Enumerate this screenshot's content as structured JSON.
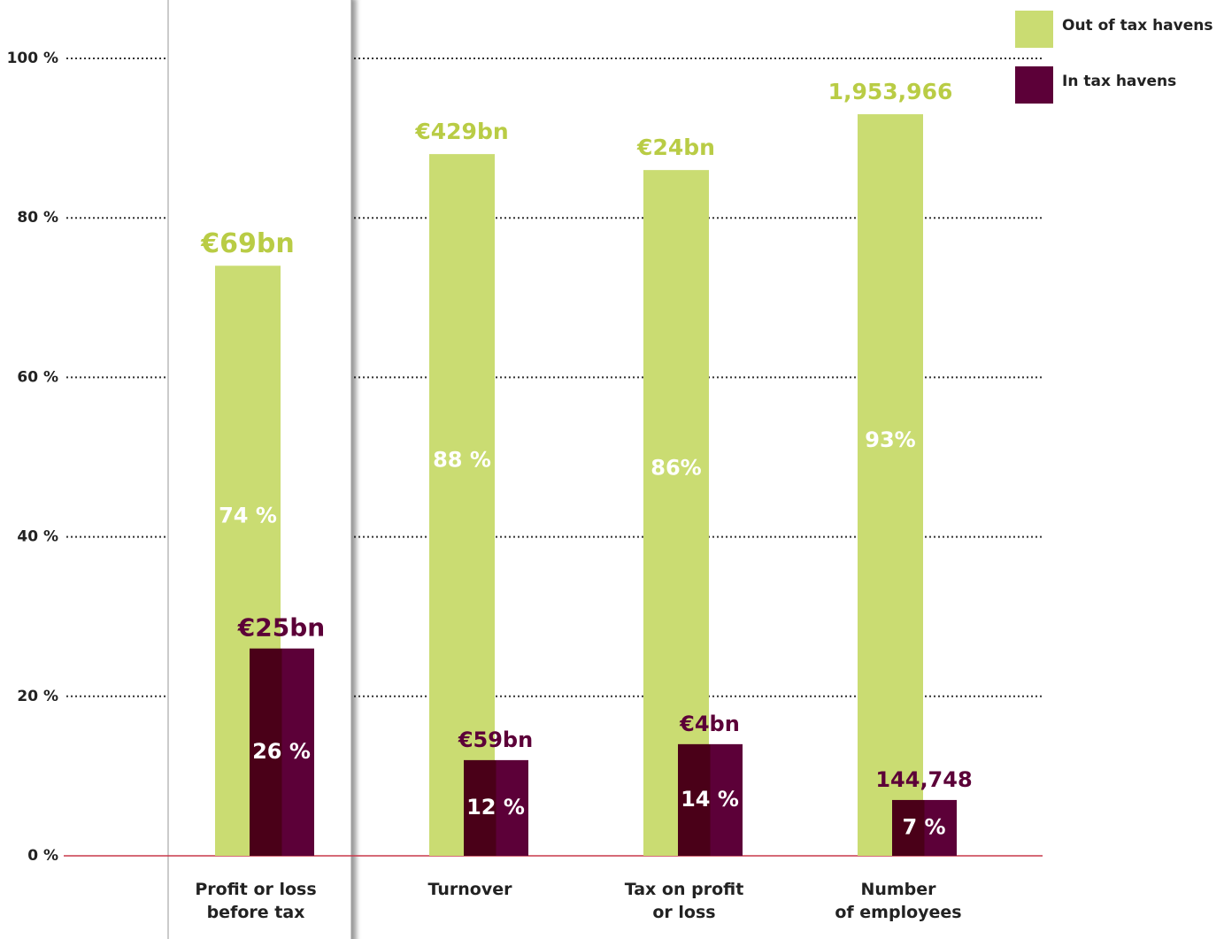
{
  "chart_data": {
    "type": "bar",
    "categories": [
      "Profit or loss\nbefore tax",
      "Turnover",
      "Tax on profit\nor loss",
      "Number\nof employees"
    ],
    "series": [
      {
        "name": "Out of tax havens",
        "color": "#cadc72",
        "values": [
          74,
          88,
          86,
          93
        ],
        "value_labels": [
          "74 %",
          "88 %",
          "86%",
          "93%"
        ],
        "amount_labels": [
          "€69bn",
          "€429bn",
          "€24bn",
          "1,953,966"
        ]
      },
      {
        "name": "In tax havens",
        "color": "#5c0038",
        "values": [
          26,
          12,
          14,
          7
        ],
        "value_labels": [
          "26 %",
          "12 %",
          "14 %",
          "7 %"
        ],
        "amount_labels": [
          "€25bn",
          "€59bn",
          "€4bn",
          "144,748"
        ]
      }
    ],
    "ylim": [
      0,
      100
    ],
    "yticks": [
      {
        "value": 0,
        "label": "0 %"
      },
      {
        "value": 20,
        "label": "20 %"
      },
      {
        "value": 40,
        "label": "40 %"
      },
      {
        "value": 60,
        "label": "60 %"
      },
      {
        "value": 80,
        "label": "80 %"
      },
      {
        "value": 100,
        "label": "100 %"
      }
    ],
    "grid": true,
    "legend": "top-right"
  }
}
